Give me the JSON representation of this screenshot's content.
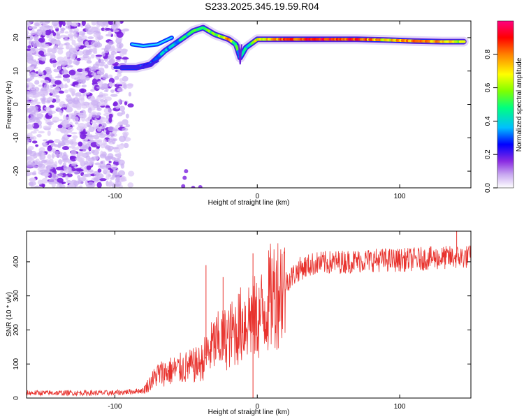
{
  "chart_data": [
    {
      "type": "heatmap",
      "title": "S233.2025.345.19.59.R04",
      "xlabel": "Height of straight line (km)",
      "ylabel": "Frequency (Hz)",
      "xlim": [
        -162,
        150
      ],
      "ylim": [
        -25,
        25
      ],
      "x_ticks": [
        -100,
        0,
        100
      ],
      "y_ticks": [
        20,
        10,
        0,
        -10,
        -20
      ],
      "colorbar": {
        "label": "Normalized spectral amplitude",
        "range": [
          0.0,
          1.0
        ],
        "ticks": [
          0.0,
          0.2,
          0.4,
          0.6,
          0.8
        ],
        "colormap": [
          "#ffffff",
          "#c8a8f0",
          "#8a2be2",
          "#0000ff",
          "#00bfff",
          "#00ff80",
          "#80ff00",
          "#ffff00",
          "#ff8000",
          "#ff0000",
          "#ff0080"
        ]
      },
      "ridge": {
        "description_points": [
          {
            "x": -95,
            "y": 11,
            "amp": 0.25
          },
          {
            "x": -85,
            "y": 11,
            "amp": 0.3
          },
          {
            "x": -75,
            "y": 12,
            "amp": 0.35
          },
          {
            "x": -65,
            "y": 16,
            "amp": 0.4
          },
          {
            "x": -55,
            "y": 19,
            "amp": 0.45
          },
          {
            "x": -45,
            "y": 22,
            "amp": 0.5
          },
          {
            "x": -38,
            "y": 23,
            "amp": 0.55
          },
          {
            "x": -30,
            "y": 21,
            "amp": 0.6
          },
          {
            "x": -20,
            "y": 19.5,
            "amp": 0.75
          },
          {
            "x": -15,
            "y": 18,
            "amp": 0.5
          },
          {
            "x": -12,
            "y": 14,
            "amp": 0.4
          },
          {
            "x": -8,
            "y": 17,
            "amp": 0.45
          },
          {
            "x": 0,
            "y": 19.5,
            "amp": 0.7
          },
          {
            "x": 20,
            "y": 19.5,
            "amp": 0.85
          },
          {
            "x": 50,
            "y": 19.5,
            "amp": 0.9
          },
          {
            "x": 70,
            "y": 19.5,
            "amp": 0.85
          },
          {
            "x": 90,
            "y": 19.3,
            "amp": 0.7
          },
          {
            "x": 110,
            "y": 19,
            "amp": 0.8
          },
          {
            "x": 130,
            "y": 18.8,
            "amp": 0.75
          },
          {
            "x": 145,
            "y": 18.8,
            "amp": 0.6
          }
        ]
      }
    },
    {
      "type": "line",
      "xlabel": "Height of straight line (km)",
      "ylabel": "SNR (10 * v/v)",
      "xlim": [
        -162,
        150
      ],
      "ylim": [
        0,
        490
      ],
      "x_ticks": [
        -100,
        0,
        100
      ],
      "y_ticks": [
        0,
        100,
        200,
        300,
        400
      ],
      "series": [
        {
          "name": "SNR",
          "color": "#e8322d",
          "envelope": [
            {
              "x": -162,
              "y": 15
            },
            {
              "x": -100,
              "y": 15
            },
            {
              "x": -80,
              "y": 22
            },
            {
              "x": -70,
              "y": 70
            },
            {
              "x": -60,
              "y": 80
            },
            {
              "x": -50,
              "y": 90
            },
            {
              "x": -40,
              "y": 100
            },
            {
              "x": -30,
              "y": 160
            },
            {
              "x": -20,
              "y": 180
            },
            {
              "x": -10,
              "y": 220
            },
            {
              "x": -5,
              "y": 240
            },
            {
              "x": 0,
              "y": 230
            },
            {
              "x": 5,
              "y": 260
            },
            {
              "x": 10,
              "y": 300
            },
            {
              "x": 20,
              "y": 340
            },
            {
              "x": 30,
              "y": 380
            },
            {
              "x": 40,
              "y": 395
            },
            {
              "x": 60,
              "y": 400
            },
            {
              "x": 80,
              "y": 405
            },
            {
              "x": 100,
              "y": 405
            },
            {
              "x": 120,
              "y": 410
            },
            {
              "x": 150,
              "y": 415
            }
          ],
          "spikes": [
            {
              "x": -36,
              "y": 390
            },
            {
              "x": -24,
              "y": 355
            },
            {
              "x": -3,
              "y": 425
            },
            {
              "x": -3,
              "y": 0
            },
            {
              "x": 140,
              "y": 490
            }
          ]
        }
      ]
    }
  ]
}
